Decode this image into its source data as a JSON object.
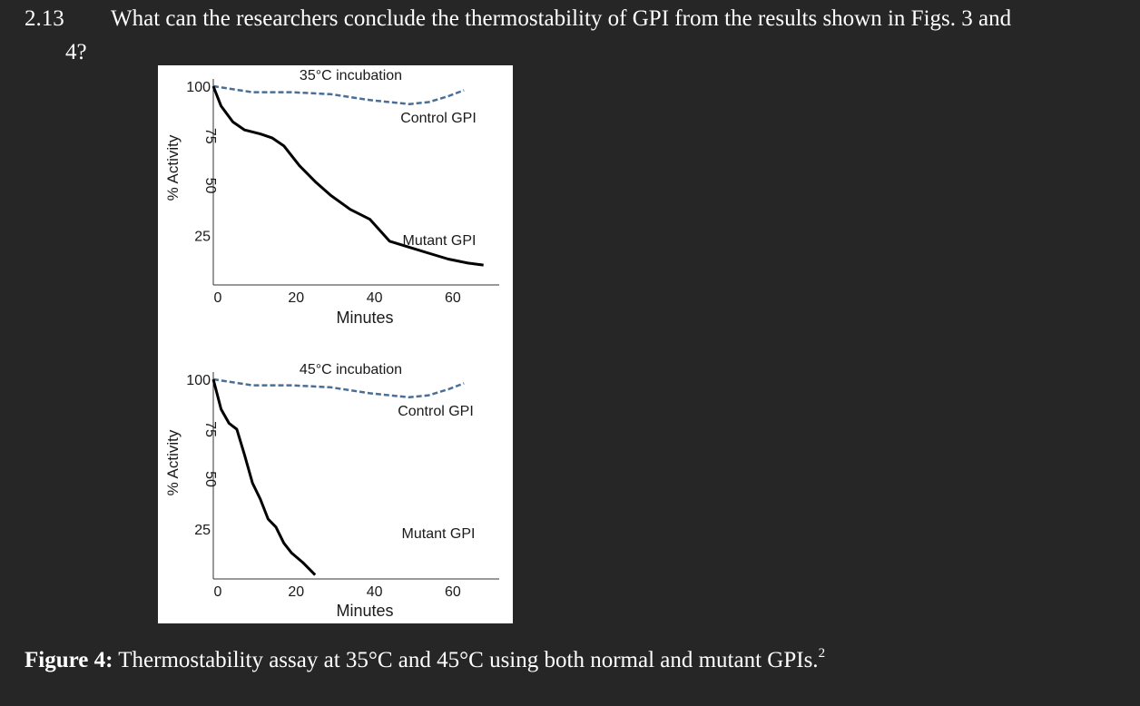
{
  "question": {
    "number": "2.13",
    "text_lines": [
      "What can the researchers conclude the thermostability of GPI from the results shown in Figs. 3 and",
      "4?"
    ]
  },
  "chart_data": [
    {
      "type": "line",
      "title": "35°C incubation",
      "x_label": "Minutes",
      "y_label": "% Activity",
      "xlim": [
        0,
        73
      ],
      "ylim": [
        0,
        100
      ],
      "xticks": [
        0,
        20,
        40,
        60
      ],
      "yticks": [
        25,
        50,
        75,
        100
      ],
      "series": [
        {
          "name": "Control GPI",
          "color": "#4a6f96",
          "line_style": "dashed",
          "x": [
            0,
            10,
            20,
            30,
            40,
            50,
            55,
            60,
            64
          ],
          "values": [
            100,
            97,
            97,
            96,
            93,
            91,
            92,
            95,
            98
          ]
        },
        {
          "name": "Mutant GPI",
          "color": "#000000",
          "line_style": "solid",
          "x": [
            0,
            2,
            5,
            8,
            12,
            15,
            18,
            22,
            26,
            30,
            35,
            40,
            45,
            50,
            55,
            60,
            65,
            69
          ],
          "values": [
            100,
            90,
            82,
            78,
            76,
            74,
            70,
            60,
            52,
            45,
            38,
            33,
            22,
            19,
            16,
            13,
            11,
            10
          ]
        }
      ]
    },
    {
      "type": "line",
      "title": "45°C incubation",
      "x_label": "Minutes",
      "y_label": "% Activity",
      "xlim": [
        0,
        73
      ],
      "ylim": [
        0,
        100
      ],
      "xticks": [
        0,
        20,
        40,
        60
      ],
      "yticks": [
        25,
        50,
        75,
        100
      ],
      "series": [
        {
          "name": "Control GPI",
          "color": "#4a6f96",
          "line_style": "dashed",
          "x": [
            0,
            10,
            20,
            30,
            40,
            50,
            55,
            60,
            64
          ],
          "values": [
            100,
            97,
            97,
            96,
            93,
            91,
            92,
            95,
            98
          ]
        },
        {
          "name": "Mutant GPI",
          "color": "#000000",
          "line_style": "solid",
          "x": [
            0,
            2,
            4,
            6,
            8,
            10,
            12,
            14,
            16,
            18,
            20,
            23,
            26
          ],
          "values": [
            100,
            85,
            78,
            75,
            62,
            48,
            40,
            30,
            26,
            18,
            13,
            8,
            2
          ]
        }
      ]
    }
  ],
  "caption": {
    "label": "Figure 4:",
    "text": "Thermostability assay at 35°C and 45°C using both normal and mutant GPIs.",
    "ref": "2"
  }
}
